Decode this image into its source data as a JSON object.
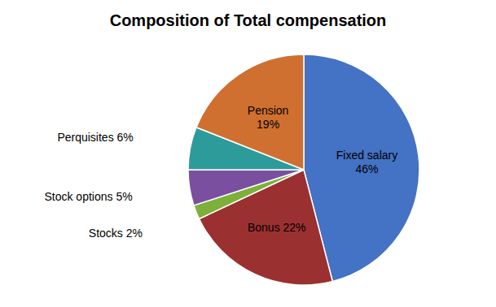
{
  "chart_data": {
    "type": "pie",
    "title": "Composition of Total compensation",
    "values": [
      46,
      22,
      2,
      5,
      6,
      19
    ],
    "value_labels": [
      "Fixed salary\n46%",
      "Bonus 22%",
      "Stocks 2%",
      "Stock options 5%",
      "Perquisites 6%",
      "Pension\n19%"
    ],
    "colors": [
      "#4472C4",
      "#9B3030",
      "#7DB03A",
      "#7B4FA0",
      "#2E9B9B",
      "#D07030"
    ]
  }
}
